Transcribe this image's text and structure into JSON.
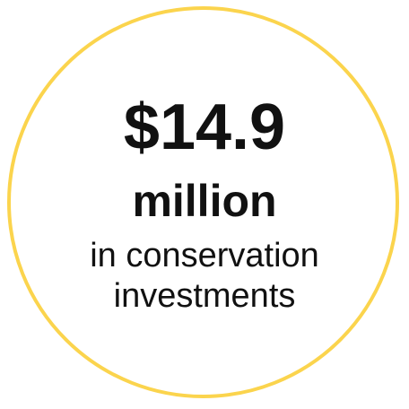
{
  "stat": {
    "amount": "$14.9",
    "unit": "million",
    "description_line1": "in conservation",
    "description_line2": "investments"
  },
  "colors": {
    "ring": "#fbd44d",
    "text": "#111111",
    "background": "#ffffff"
  }
}
